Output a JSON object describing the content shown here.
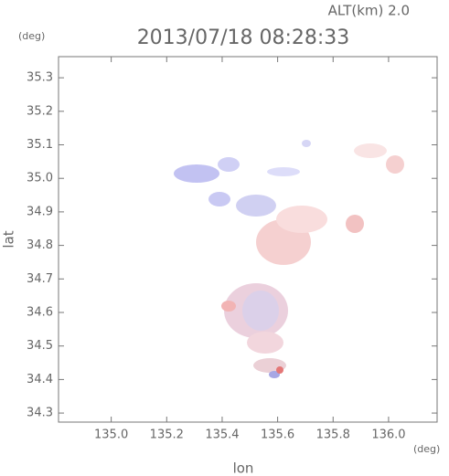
{
  "chart_data": {
    "type": "map",
    "title": "2013/07/18 08:28:33",
    "subtitle": "ALT(km) 2.0",
    "x_label": "lon",
    "x_unit": "(deg)",
    "y_label": "lat",
    "y_unit": "(deg)",
    "xlim": [
      134.81,
      136.175
    ],
    "ylim": [
      34.273,
      35.363
    ],
    "xticks": [
      {
        "value": 135,
        "label": "135.0"
      },
      135.2,
      135.4,
      135.6,
      135.8,
      {
        "value": 136,
        "label": "136.0"
      }
    ],
    "yticks": [
      34.3,
      34.4,
      34.5,
      34.6,
      34.7,
      34.8,
      34.9,
      {
        "value": 35,
        "label": "35.0"
      },
      35.1,
      35.2,
      35.3
    ]
  }
}
